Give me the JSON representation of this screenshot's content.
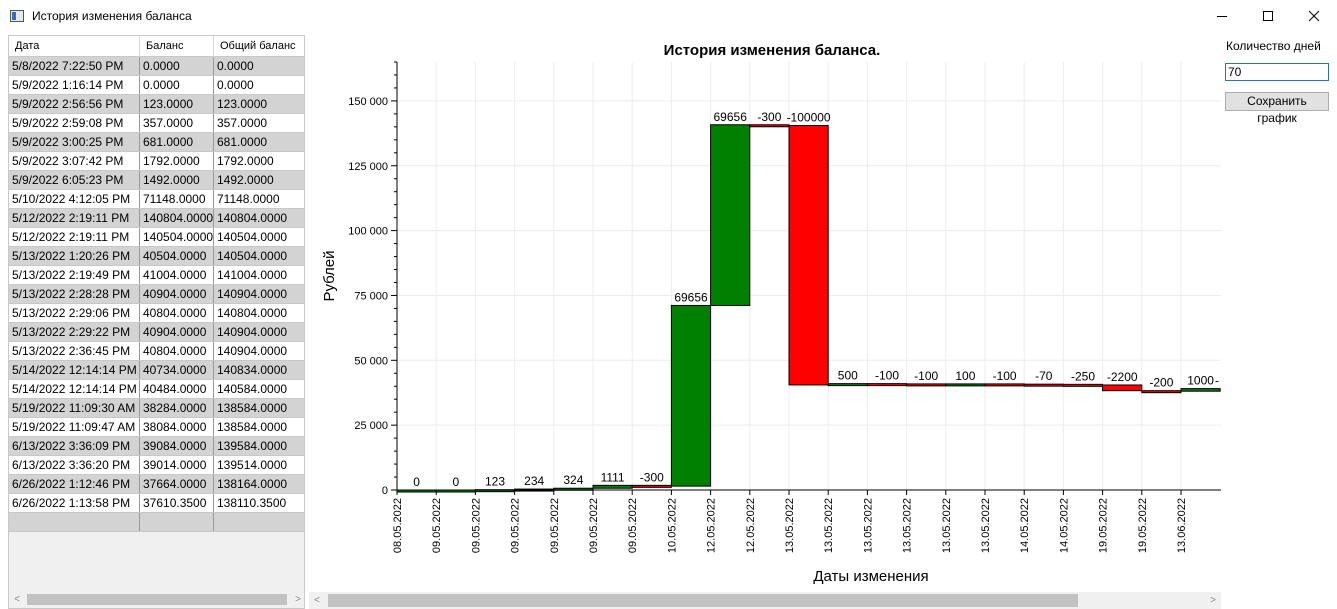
{
  "window": {
    "title": "История изменения баланса",
    "minimize_icon": "minimize-icon",
    "maximize_icon": "maximize-icon",
    "close_icon": "close-icon"
  },
  "grid": {
    "columns": [
      "Дата",
      "Баланс",
      "Общий баланс"
    ],
    "rows": [
      [
        "5/8/2022 7:22:50 PM",
        "0.0000",
        "0.0000"
      ],
      [
        "5/9/2022 1:16:14 PM",
        "0.0000",
        "0.0000"
      ],
      [
        "5/9/2022 2:56:56 PM",
        "123.0000",
        "123.0000"
      ],
      [
        "5/9/2022 2:59:08 PM",
        "357.0000",
        "357.0000"
      ],
      [
        "5/9/2022 3:00:25 PM",
        "681.0000",
        "681.0000"
      ],
      [
        "5/9/2022 3:07:42 PM",
        "1792.0000",
        "1792.0000"
      ],
      [
        "5/9/2022 6:05:23 PM",
        "1492.0000",
        "1492.0000"
      ],
      [
        "5/10/2022 4:12:05 PM",
        "71148.0000",
        "71148.0000"
      ],
      [
        "5/12/2022 2:19:11 PM",
        "140804.0000",
        "140804.0000"
      ],
      [
        "5/12/2022 2:19:11 PM",
        "140504.0000",
        "140504.0000"
      ],
      [
        "5/13/2022 1:20:26 PM",
        "40504.0000",
        "140504.0000"
      ],
      [
        "5/13/2022 2:19:49 PM",
        "41004.0000",
        "141004.0000"
      ],
      [
        "5/13/2022 2:28:28 PM",
        "40904.0000",
        "140904.0000"
      ],
      [
        "5/13/2022 2:29:06 PM",
        "40804.0000",
        "140804.0000"
      ],
      [
        "5/13/2022 2:29:22 PM",
        "40904.0000",
        "140904.0000"
      ],
      [
        "5/13/2022 2:36:45 PM",
        "40804.0000",
        "140904.0000"
      ],
      [
        "5/14/2022 12:14:14 PM",
        "40734.0000",
        "140834.0000"
      ],
      [
        "5/14/2022 12:14:14 PM",
        "40484.0000",
        "140584.0000"
      ],
      [
        "5/19/2022 11:09:30 AM",
        "38284.0000",
        "138584.0000"
      ],
      [
        "5/19/2022 11:09:47 AM",
        "38084.0000",
        "138584.0000"
      ],
      [
        "6/13/2022 3:36:09 PM",
        "39084.0000",
        "139584.0000"
      ],
      [
        "6/13/2022 3:36:20 PM",
        "39014.0000",
        "139514.0000"
      ],
      [
        "6/26/2022 1:12:46 PM",
        "37664.0000",
        "138164.0000"
      ],
      [
        "6/26/2022 1:13:58 PM",
        "37610.3500",
        "138110.3500"
      ]
    ]
  },
  "controls": {
    "days_label": "Количество дней",
    "days_value": "70",
    "save_label": "Сохранить график"
  },
  "colors": {
    "up": "#008000",
    "down": "#ff0000"
  },
  "chart_data": {
    "type": "bar",
    "subtype": "waterfall",
    "title": "История изменения баланса.",
    "xlabel": "Даты изменения",
    "ylabel": "Рублей",
    "ylim": [
      0,
      165000
    ],
    "yticks": [
      0,
      25000,
      50000,
      75000,
      100000,
      125000,
      150000
    ],
    "ytick_labels": [
      "0",
      "25 000",
      "50 000",
      "75 000",
      "100 000",
      "125 000",
      "150 000"
    ],
    "grid": true,
    "categories": [
      "08.05.2022",
      "09.05.2022",
      "09.05.2022",
      "09.05.2022",
      "09.05.2022",
      "09.05.2022",
      "09.05.2022",
      "10.05.2022",
      "12.05.2022",
      "12.05.2022",
      "13.05.2022",
      "13.05.2022",
      "13.05.2022",
      "13.05.2022",
      "13.05.2022",
      "13.05.2022",
      "14.05.2022",
      "14.05.2022",
      "19.05.2022",
      "19.05.2022",
      "13.06.2022"
    ],
    "deltas": [
      0,
      0,
      123,
      234,
      324,
      1111,
      -300,
      69656,
      69656,
      -300,
      -100000,
      500,
      -100,
      -100,
      100,
      -100,
      -70,
      -250,
      -2200,
      -200,
      1000
    ],
    "labels": [
      "0",
      "0",
      "123",
      "234",
      "324",
      "1111",
      "-300",
      "69656",
      "69656",
      "-300",
      "-100000",
      "500",
      "-100",
      "-100",
      "100",
      "-100",
      "-70",
      "-250",
      "-2200",
      "-200",
      "1000"
    ],
    "bar_start": [
      0,
      0,
      0,
      123,
      357,
      681,
      1792,
      1492,
      71148,
      140804,
      140504,
      40504,
      41004,
      40904,
      40804,
      40904,
      40804,
      40734,
      40484,
      38284,
      38084
    ],
    "bar_end": [
      0,
      0,
      123,
      357,
      681,
      1792,
      1492,
      71148,
      140804,
      140504,
      40504,
      41004,
      40904,
      40804,
      40904,
      40804,
      40734,
      40484,
      38284,
      38084,
      39084
    ],
    "trailing_label": "-"
  }
}
